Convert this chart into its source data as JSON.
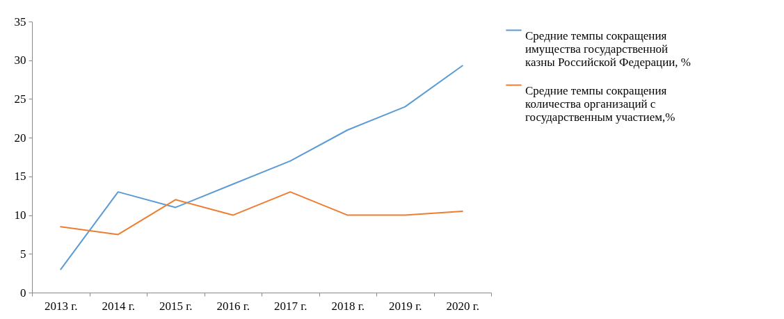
{
  "chart_data": {
    "type": "line",
    "categories": [
      "2013 г.",
      "2014 г.",
      "2015 г.",
      "2016 г.",
      "2017 г.",
      "2018 г.",
      "2019 г.",
      "2020 г."
    ],
    "series": [
      {
        "name": "Средние темпы сокращения имущества государственной казны Российской Федерации, %",
        "color": "#5b9bd5",
        "values": [
          3,
          13,
          11,
          14,
          17,
          21,
          24,
          29.3
        ]
      },
      {
        "name": "Средние темпы сокращения количества организаций с государственным участием,%",
        "color": "#ed7d31",
        "values": [
          8.5,
          7.5,
          12,
          10,
          13,
          10,
          10,
          10.5
        ]
      }
    ],
    "ylim": [
      0,
      35
    ],
    "yticks": [
      0,
      5,
      10,
      15,
      20,
      25,
      30,
      35
    ],
    "legend": "right"
  }
}
